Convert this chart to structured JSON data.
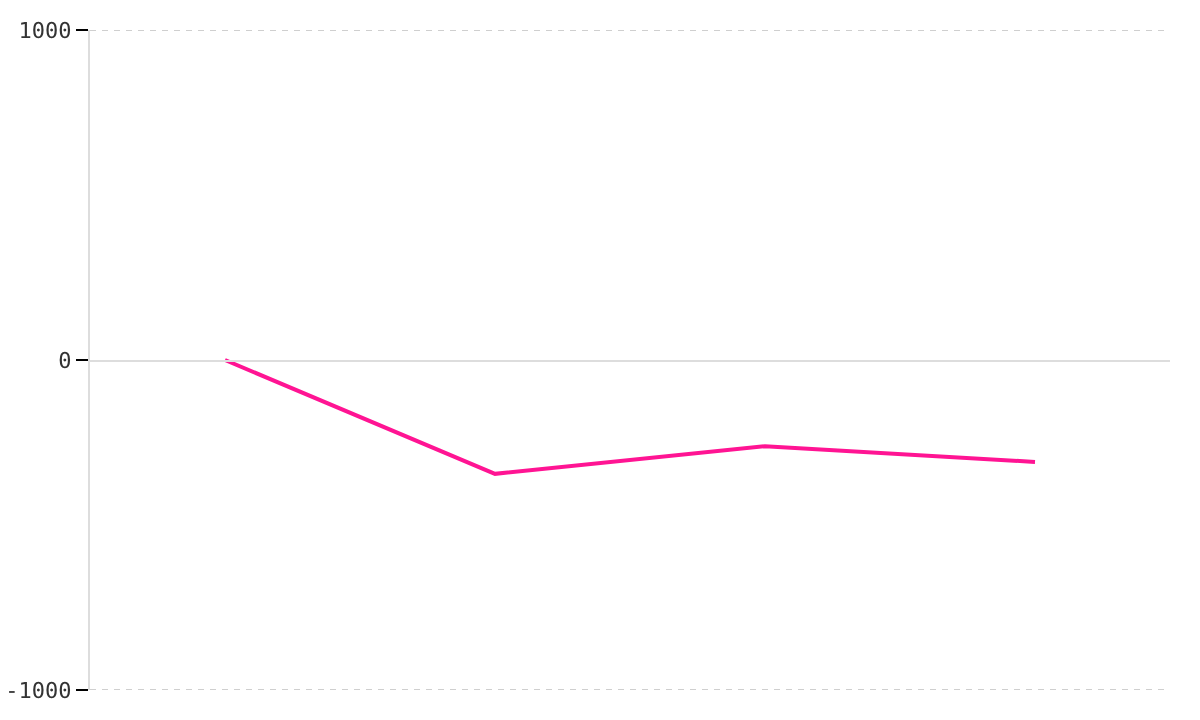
{
  "chart_data": {
    "type": "line",
    "categories": [
      null,
      null,
      null,
      null
    ],
    "series": [
      {
        "color": "#ff1493",
        "values": [
          0,
          -345,
          -261,
          -309
        ]
      }
    ],
    "ylim": [
      -1000,
      1000
    ],
    "yticks": [
      -1000,
      0,
      1000
    ],
    "grid": "y",
    "tick_labels": "y",
    "legend": false,
    "marker": "none",
    "line_style": "solid"
  }
}
